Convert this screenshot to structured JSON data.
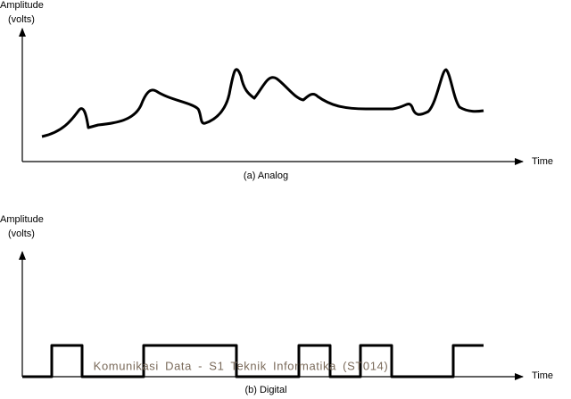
{
  "panels": [
    {
      "y_label": "Amplitude",
      "y_unit": "(volts)",
      "x_label": "Time",
      "caption": "(a) Analog"
    },
    {
      "y_label": "Amplitude",
      "y_unit": "(volts)",
      "x_label": "Time",
      "caption": "(b) Digital"
    }
  ],
  "watermark": "Komunikasi Data - S1 Teknik Informatika (ST014)"
}
